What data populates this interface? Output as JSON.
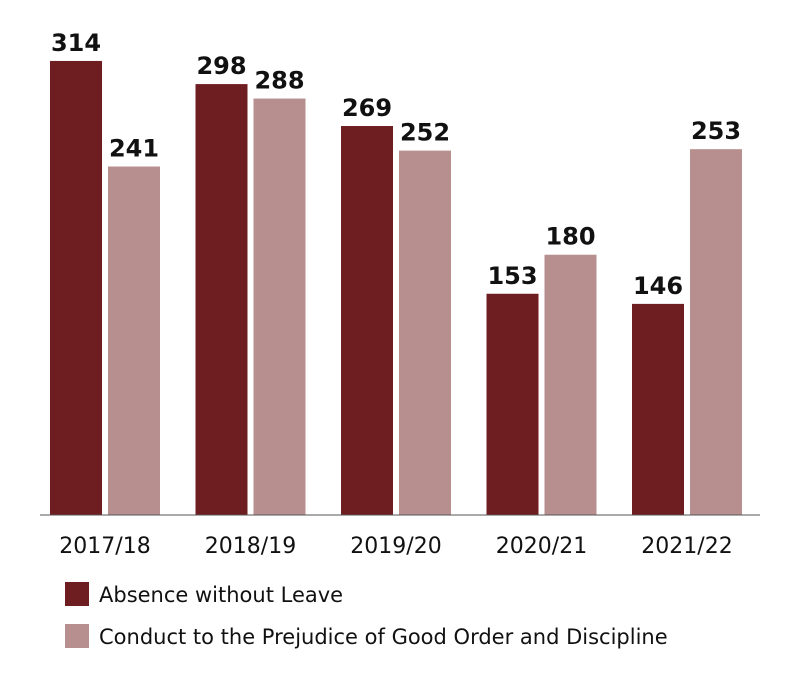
{
  "chart_data": {
    "type": "bar",
    "title": "",
    "xlabel": "",
    "ylabel": "",
    "grid": false,
    "legend_position": "bottom",
    "ylim": [
      0,
      330
    ],
    "categories": [
      "2017/18",
      "2018/19",
      "2019/20",
      "2020/21",
      "2021/22"
    ],
    "series": [
      {
        "name": "Absence without Leave",
        "color": "#6e1d21",
        "values": [
          314,
          298,
          269,
          153,
          146
        ]
      },
      {
        "name": "Conduct to the Prejudice of Good Order and Discipline",
        "color": "#b78f8f",
        "values": [
          241,
          288,
          252,
          180,
          253
        ]
      }
    ]
  }
}
